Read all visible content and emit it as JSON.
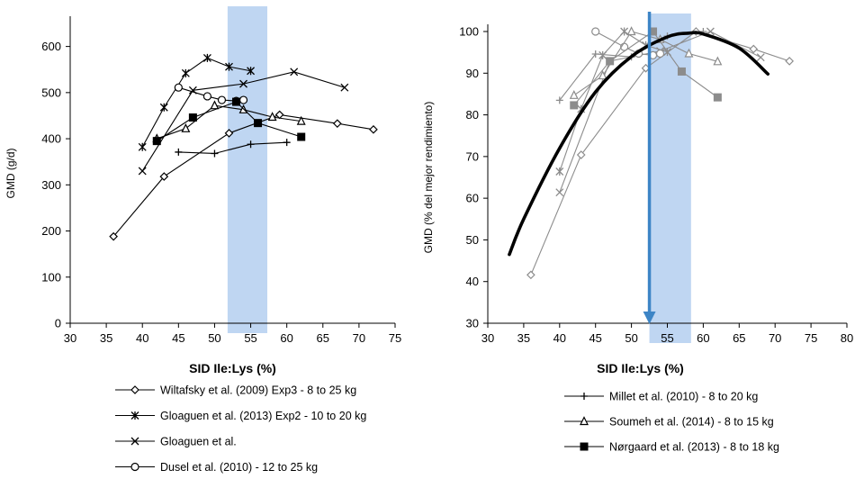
{
  "chart_data": [
    {
      "type": "line",
      "xlabel": "SID Ile:Lys (%)",
      "ylabel": "GMD (g/d)",
      "xlim": [
        30,
        75
      ],
      "ylim": [
        0,
        650
      ],
      "xticks": [
        30,
        35,
        40,
        45,
        50,
        55,
        60,
        65,
        70,
        75
      ],
      "yticks": [
        0,
        100,
        200,
        300,
        400,
        500,
        600
      ],
      "grid": false,
      "highlight_band": {
        "x_from": 51.8,
        "x_to": 57.3,
        "color": "#a9c8ee"
      },
      "series": [
        {
          "name": "Wiltafsky et al. (2009) Exp3 - 8 to 25 kg",
          "marker": "diamond-open",
          "color": "#000000",
          "x": [
            36,
            43,
            52,
            59,
            67,
            72
          ],
          "y": [
            188,
            318,
            412,
            452,
            433,
            420
          ]
        },
        {
          "name": "Gloaguen et al. (2013) Exp2 - 10 to 20 kg",
          "marker": "asterisk",
          "color": "#000000",
          "x": [
            40,
            43,
            46,
            49,
            52,
            55
          ],
          "y": [
            382,
            468,
            542,
            575,
            556,
            547
          ]
        },
        {
          "name": "Gloaguen et al.",
          "marker": "x",
          "color": "#000000",
          "x": [
            40,
            47,
            54,
            61,
            68
          ],
          "y": [
            330,
            505,
            519,
            545,
            511
          ]
        },
        {
          "name": "Dusel et al. (2010) -  12 to 25 kg",
          "marker": "circle-open",
          "color": "#000000",
          "x": [
            45,
            49,
            51,
            53,
            54
          ],
          "y": [
            511,
            492,
            484,
            482,
            484
          ]
        },
        {
          "name": "Millet et al. (2010) - 8 to 20 kg",
          "marker": "plus",
          "color": "#000000",
          "x": [
            45,
            50,
            55,
            60
          ],
          "y": [
            371,
            368,
            388,
            392
          ]
        },
        {
          "name": "Soumeh et al. (2014) - 8 to 15 kg",
          "marker": "triangle-open",
          "color": "#000000",
          "x": [
            42,
            46,
            50,
            54,
            58,
            62
          ],
          "y": [
            400,
            422,
            472,
            463,
            447,
            438
          ]
        },
        {
          "name": "Nørgaard et al. (2013) - 8 to 18 kg",
          "marker": "square-filled",
          "color": "#000000",
          "x": [
            42,
            47,
            53,
            56,
            62
          ],
          "y": [
            395,
            446,
            480,
            434,
            404
          ]
        }
      ]
    },
    {
      "type": "line",
      "xlabel": "SID Ile:Lys (%)",
      "ylabel": "GMD (% del mejor rendimiento)",
      "xlim": [
        30,
        80
      ],
      "ylim": [
        30,
        100
      ],
      "xticks": [
        30,
        35,
        40,
        45,
        50,
        55,
        60,
        65,
        70,
        75,
        80
      ],
      "yticks": [
        30,
        40,
        50,
        60,
        70,
        80,
        90,
        100
      ],
      "grid": false,
      "highlight_band": {
        "x_from": 52.5,
        "x_to": 58.3,
        "color": "#a9c8ee"
      },
      "optimum_arrow": {
        "x": 52.5,
        "color": "#3d85c6"
      },
      "fitted_curve": {
        "x": [
          33,
          35,
          40,
          45,
          50,
          55,
          58,
          60,
          65,
          69
        ],
        "y": [
          46.5,
          55.0,
          72.0,
          85.5,
          94.0,
          98.7,
          99.6,
          99.4,
          96.0,
          89.8
        ],
        "color": "#000000"
      },
      "series": [
        {
          "name": "Wiltafsky et al. (2009) Exp3 - 8 to 25 kg",
          "marker": "diamond-open",
          "color": "#8c8c8c",
          "x": [
            36,
            43,
            52,
            59,
            67,
            72
          ],
          "y": [
            41.6,
            70.4,
            91.2,
            100,
            95.8,
            92.9
          ]
        },
        {
          "name": "Gloaguen et al. (2013) Exp2 - 10 to 20 kg",
          "marker": "asterisk",
          "color": "#8c8c8c",
          "x": [
            40,
            43,
            46,
            49,
            52,
            55
          ],
          "y": [
            66.4,
            81.4,
            94.3,
            100,
            96.7,
            95.1
          ]
        },
        {
          "name": "Gloaguen et al.",
          "marker": "x",
          "color": "#8c8c8c",
          "x": [
            40,
            47,
            54,
            61,
            68
          ],
          "y": [
            61.4,
            92.9,
            95.3,
            100,
            93.8
          ]
        },
        {
          "name": "Dusel et al. (2010) -  12 to 25 kg",
          "marker": "circle-open",
          "color": "#8c8c8c",
          "x": [
            45,
            49,
            51,
            53,
            54
          ],
          "y": [
            100,
            96.3,
            94.7,
            94.3,
            94.7
          ]
        },
        {
          "name": "Millet et al. (2010) - 8 to 20 kg",
          "marker": "plus",
          "color": "#8c8c8c",
          "x": [
            40,
            45,
            50,
            55,
            60
          ],
          "y": [
            83.5,
            94.6,
            93.9,
            98.9,
            100
          ]
        },
        {
          "name": "Soumeh et al. (2014) - 8 to 15 kg",
          "marker": "triangle-open",
          "color": "#8c8c8c",
          "x": [
            42,
            46,
            50,
            54,
            58,
            62
          ],
          "y": [
            84.7,
            89.4,
            100,
            98.1,
            94.7,
            92.8
          ]
        },
        {
          "name": "Nørgaard et al. (2013) - 8 to 18 kg",
          "marker": "square-filled",
          "color": "#8c8c8c",
          "x": [
            42,
            47,
            53,
            57,
            62
          ],
          "y": [
            82.3,
            92.9,
            100,
            90.4,
            84.2
          ]
        }
      ]
    }
  ],
  "legend": {
    "left": [
      {
        "label": "Wiltafsky et al. (2009) Exp3 - 8 to 25 kg",
        "marker": "diamond-open"
      },
      {
        "label": "Gloaguen et al. (2013) Exp2 - 10 to 20 kg",
        "marker": "asterisk"
      },
      {
        "label": "Gloaguen et al.",
        "marker": "x"
      },
      {
        "label": "Dusel et al. (2010) -  12 to 25 kg",
        "marker": "circle-open"
      }
    ],
    "right": [
      {
        "label": "Millet et al. (2010) - 8 to 20 kg",
        "marker": "plus"
      },
      {
        "label": "Soumeh et al. (2014) - 8 to 15 kg",
        "marker": "triangle-open"
      },
      {
        "label": "Nørgaard et al. (2013) - 8 to 18 kg",
        "marker": "square-filled"
      }
    ]
  }
}
